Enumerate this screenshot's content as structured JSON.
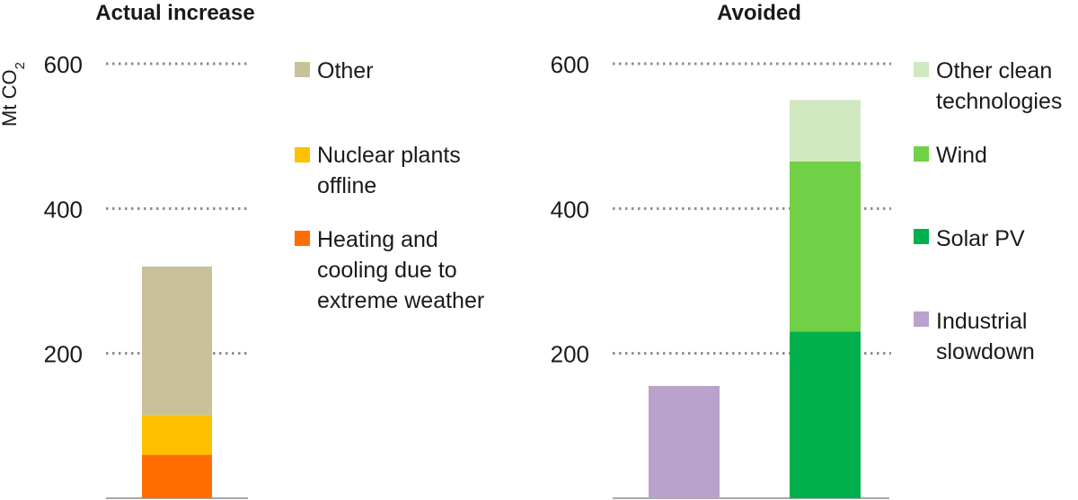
{
  "chart_data": [
    {
      "type": "bar",
      "stacked": true,
      "title": "Actual increase",
      "ylabel": "Mt CO2",
      "ylim": [
        0,
        600
      ],
      "yticks": [
        200,
        400,
        600
      ],
      "grid": "dotted horizontal",
      "legend_position": "right",
      "categories": [
        ""
      ],
      "series": [
        {
          "name": "Heating and cooling due to extreme weather",
          "values": [
            60
          ],
          "color": "#ff6d00"
        },
        {
          "name": "Nuclear plants offline",
          "values": [
            55
          ],
          "color": "#ffc000"
        },
        {
          "name": "Other",
          "values": [
            205
          ],
          "color": "#c9c19a"
        }
      ],
      "legend_lines": {
        "Other": [
          "Other"
        ],
        "Nuclear plants offline": [
          "Nuclear plants",
          "offline"
        ],
        "Heating and cooling due to extreme weather": [
          "Heating and",
          "cooling due to",
          "extreme weather"
        ]
      }
    },
    {
      "type": "bar",
      "stacked": true,
      "title": "Avoided",
      "ylim": [
        0,
        600
      ],
      "yticks": [
        200,
        400,
        600
      ],
      "grid": "dotted horizontal",
      "legend_position": "right",
      "categories": [
        "",
        ""
      ],
      "series": [
        {
          "name": "Industrial slowdown",
          "values": [
            155,
            0
          ],
          "color": "#b9a2cc"
        },
        {
          "name": "Solar PV",
          "values": [
            0,
            230
          ],
          "color": "#00b04c"
        },
        {
          "name": "Wind",
          "values": [
            0,
            235
          ],
          "color": "#70d146"
        },
        {
          "name": "Other clean technologies",
          "values": [
            0,
            85
          ],
          "color": "#d0e8c0"
        }
      ],
      "legend_lines": {
        "Other clean technologies": [
          "Other clean",
          "technologies"
        ],
        "Wind": [
          "Wind"
        ],
        "Solar PV": [
          "Solar PV"
        ],
        "Industrial slowdown": [
          "Industrial",
          "slowdown"
        ]
      }
    }
  ]
}
